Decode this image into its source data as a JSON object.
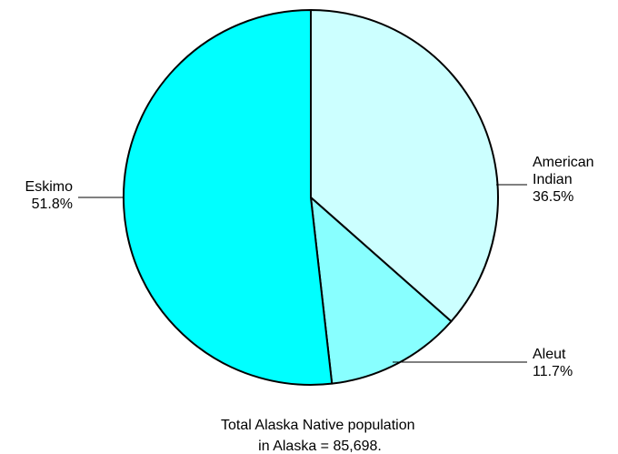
{
  "chart_data": {
    "type": "pie",
    "slices": [
      {
        "label_lines": [
          "American",
          "Indian"
        ],
        "percent_label": "36.5%",
        "value": 36.5,
        "color": "#ccffff"
      },
      {
        "label_lines": [
          "Aleut"
        ],
        "percent_label": "11.7%",
        "value": 11.7,
        "color": "#88ffff"
      },
      {
        "label_lines": [
          "Eskimo"
        ],
        "percent_label": "51.8%",
        "value": 51.8,
        "color": "#00ffff"
      }
    ],
    "caption_lines": [
      "Total Alaska Native population",
      "in Alaska = 85,698."
    ],
    "outline_color": "#000000"
  }
}
